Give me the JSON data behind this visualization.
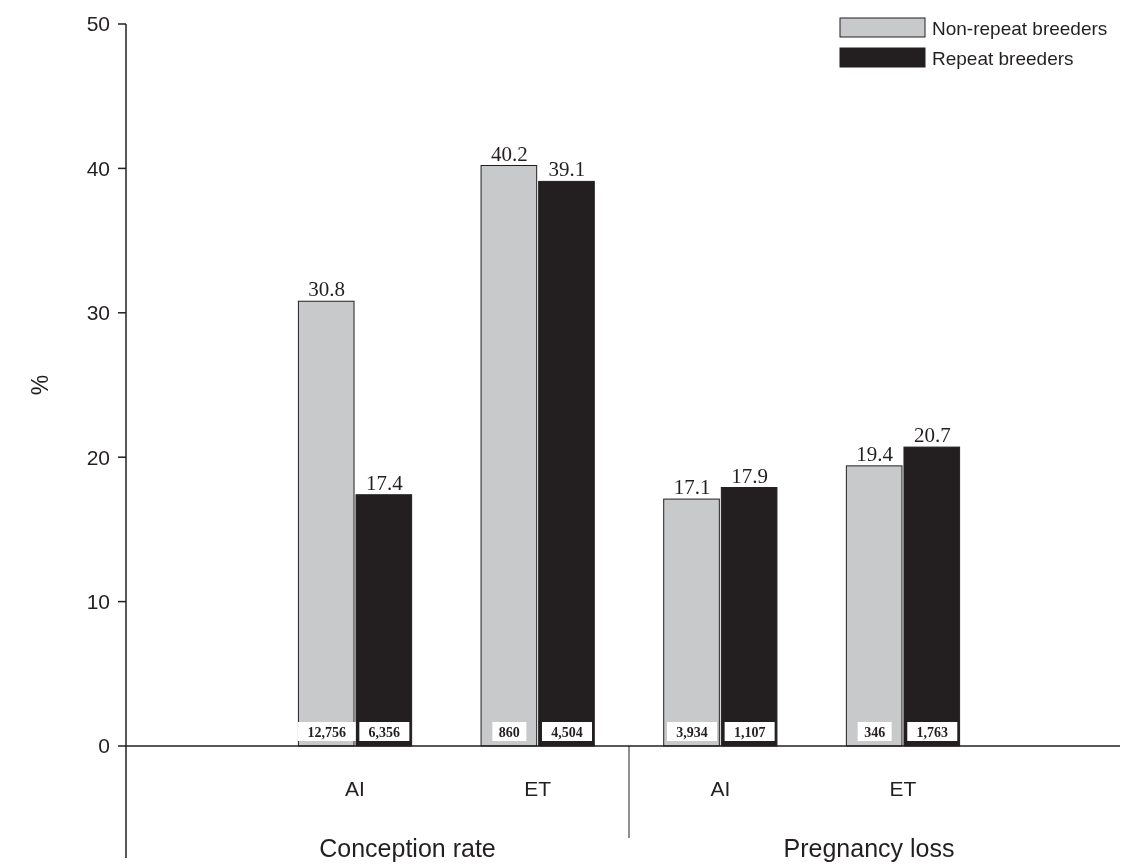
{
  "chart_data": {
    "type": "bar",
    "ylabel": "%",
    "categories": [
      "AI",
      "ET",
      "AI",
      "ET"
    ],
    "series": [
      {
        "name": "Non-repeat breeders",
        "color": "#c8c9cb",
        "values": [
          30.8,
          40.2,
          17.1,
          19.4
        ]
      },
      {
        "name": "Repeat breeders",
        "color": "#231f20",
        "values": [
          17.4,
          39.1,
          17.9,
          20.7
        ]
      }
    ],
    "ylim": [
      0,
      50
    ],
    "yticks": [
      0,
      10,
      20,
      30,
      40,
      50
    ],
    "data_labels": true,
    "legend": "top right",
    "annotations": [
      "Conception rate",
      "Pregnancy loss",
      "12,756",
      "860",
      "3,934",
      "346",
      "6,356",
      "4,504",
      "1,107",
      "1,763"
    ]
  }
}
